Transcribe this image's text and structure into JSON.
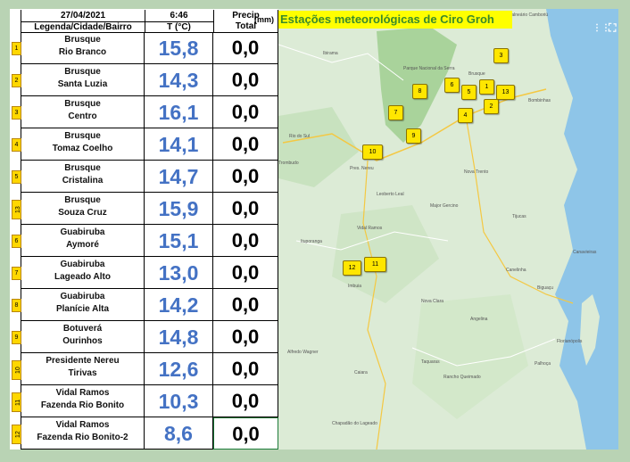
{
  "header": {
    "date": "27/04/2021",
    "time": "6:46",
    "precip_label_1": "Precip",
    "precip_label_2": "Total",
    "unit": "(mm)",
    "col_location": "Legenda/Cidade/Bairro",
    "col_temp": "T (°C)"
  },
  "map": {
    "title": "Estações meteorológicas de Ciro Groh",
    "marker_labels": [
      "3",
      "8",
      "6",
      "1",
      "5",
      "13",
      "2",
      "7",
      "4",
      "9",
      "10",
      "12",
      "11"
    ],
    "towns": [
      "Balneário Camboriú",
      "Ibirama",
      "Parque Nacional da Serra",
      "Brusque",
      "Bombinhas",
      "Rio do Sul",
      "Trombudo",
      "Pres. Nereu",
      "Vidal Ramos",
      "Nova Trento",
      "Ituporanga",
      "Imbuia",
      "Nova Clara",
      "Canelinha",
      "Biguaçu",
      "Florianópolis",
      "Palhoça",
      "Alfredo Wagner",
      "Taquaras",
      "Rancho Queimado",
      "Chapadão do Lageado",
      "Leoberto Leal",
      "Major Gercino",
      "Canavieiras",
      "Angelina",
      "Tijucas",
      "Caiara"
    ],
    "control_icons": [
      "grid-icon",
      "fullscreen-icon"
    ]
  },
  "rows": [
    {
      "idx": "1",
      "city": "Brusque",
      "area": "Rio Branco",
      "temp": "15,8",
      "precip": "0,0"
    },
    {
      "idx": "2",
      "city": "Brusque",
      "area": "Santa Luzia",
      "temp": "14,3",
      "precip": "0,0"
    },
    {
      "idx": "3",
      "city": "Brusque",
      "area": "Centro",
      "temp": "16,1",
      "precip": "0,0"
    },
    {
      "idx": "4",
      "city": "Brusque",
      "area": "Tomaz Coelho",
      "temp": "14,1",
      "precip": "0,0"
    },
    {
      "idx": "5",
      "city": "Brusque",
      "area": "Cristalina",
      "temp": "14,7",
      "precip": "0,0"
    },
    {
      "idx": "13",
      "city": "Brusque",
      "area": "Souza Cruz",
      "temp": "15,9",
      "precip": "0,0"
    },
    {
      "idx": "6",
      "city": "Guabiruba",
      "area": "Aymoré",
      "temp": "15,1",
      "precip": "0,0"
    },
    {
      "idx": "7",
      "city": "Guabiruba",
      "area": "Lageado Alto",
      "temp": "13,0",
      "precip": "0,0"
    },
    {
      "idx": "8",
      "city": "Guabiruba",
      "area": "Planície Alta",
      "temp": "14,2",
      "precip": "0,0"
    },
    {
      "idx": "9",
      "city": "Botuverá",
      "area": "Ourinhos",
      "temp": "14,8",
      "precip": "0,0"
    },
    {
      "idx": "10",
      "city": "Presidente Nereu",
      "area": "Tirivas",
      "temp": "12,6",
      "precip": "0,0"
    },
    {
      "idx": "11",
      "city": "Vidal Ramos",
      "area": "Fazenda Rio Bonito",
      "temp": "10,3",
      "precip": "0,0"
    },
    {
      "idx": "12",
      "city": "Vidal Ramos",
      "area": "Fazenda Rio Bonito-2",
      "temp": "8,6",
      "precip": "0,0"
    }
  ]
}
